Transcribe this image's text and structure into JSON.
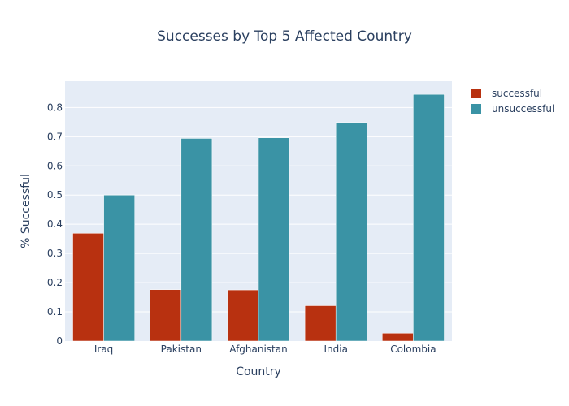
{
  "chart_data": {
    "type": "bar",
    "title": "Successes by Top 5 Affected Country",
    "xlabel": "Country",
    "ylabel": "% Successful",
    "categories": [
      "Iraq",
      "Pakistan",
      "Afghanistan",
      "India",
      "Colombia"
    ],
    "series": [
      {
        "name": "successful",
        "values": [
          0.369,
          0.176,
          0.175,
          0.121,
          0.027
        ],
        "color": "#b83110"
      },
      {
        "name": "unsuccessful",
        "values": [
          0.5,
          0.694,
          0.696,
          0.749,
          0.845
        ],
        "color": "#3a93a5"
      }
    ],
    "ylim": [
      0,
      0.89
    ],
    "yticks": [
      0,
      0.1,
      0.2,
      0.3,
      0.4,
      0.5,
      0.6,
      0.7,
      0.8
    ],
    "ytick_labels": [
      "0",
      "0.1",
      "0.2",
      "0.3",
      "0.4",
      "0.5",
      "0.6",
      "0.7",
      "0.8"
    ],
    "grid": true,
    "legend": "top-right",
    "plot_bg": "#e5ecf6"
  }
}
